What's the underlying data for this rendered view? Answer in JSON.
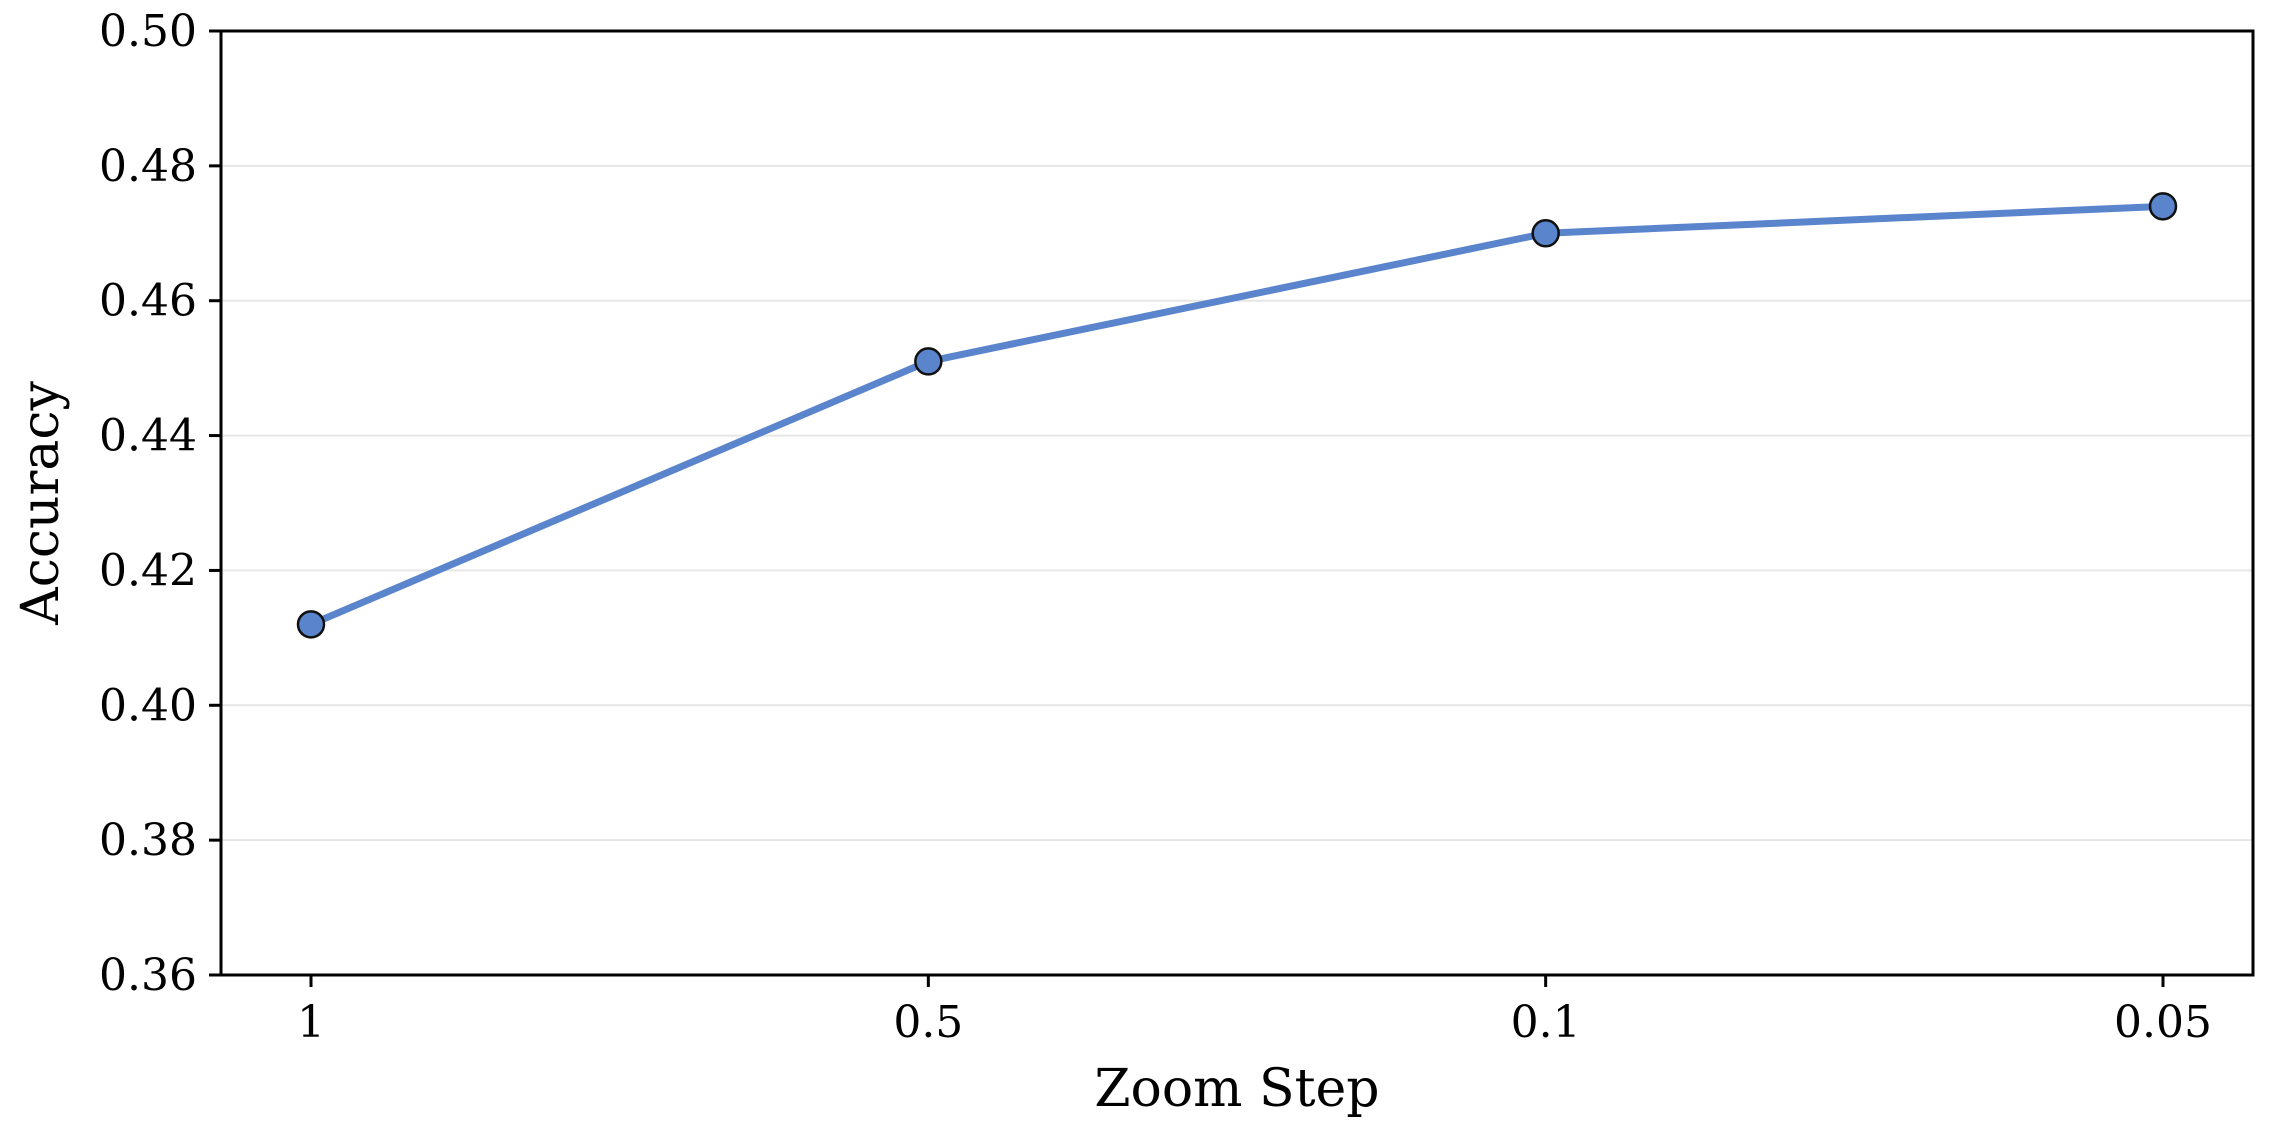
{
  "chart_data": {
    "type": "line",
    "title": "",
    "xlabel": "Zoom Step",
    "ylabel": "Accuracy",
    "categories": [
      "1",
      "0.5",
      "0.1",
      "0.05"
    ],
    "series": [
      {
        "values": [
          0.412,
          0.451,
          0.47,
          0.474
        ],
        "color": "#5a84cc",
        "marker": "circle"
      }
    ],
    "ylim": [
      0.36,
      0.5
    ],
    "yticks": [
      "0.36",
      "0.38",
      "0.40",
      "0.42",
      "0.44",
      "0.46",
      "0.48",
      "0.50"
    ],
    "grid": "horizontal",
    "legend": "none"
  }
}
